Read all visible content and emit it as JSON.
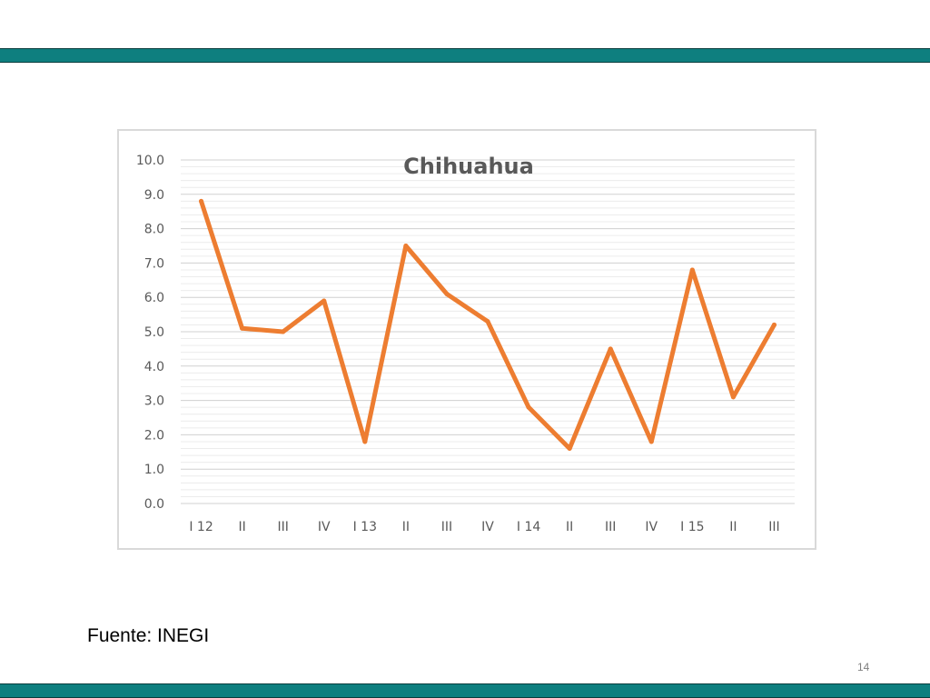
{
  "slide": {
    "source_text": "Fuente: INEGI",
    "page_number": "14",
    "band_color": "#0e7f7f"
  },
  "chart_data": {
    "type": "line",
    "title": "Chihuahua",
    "categories": [
      "I 12",
      "II",
      "III",
      "IV",
      "I 13",
      "II",
      "III",
      "IV",
      "I 14",
      "II",
      "III",
      "IV",
      "I 15",
      "II",
      "III"
    ],
    "series": [
      {
        "values": [
          8.8,
          5.1,
          5.0,
          5.9,
          1.8,
          7.5,
          6.1,
          5.3,
          2.8,
          1.6,
          4.5,
          1.8,
          6.8,
          3.1,
          5.2
        ],
        "color": "#ed7d31"
      }
    ],
    "ylim": [
      0,
      10
    ],
    "yticks": [
      "0.0",
      "1.0",
      "2.0",
      "3.0",
      "4.0",
      "5.0",
      "6.0",
      "7.0",
      "8.0",
      "9.0",
      "10.0"
    ],
    "xlabel": "",
    "ylabel": "",
    "grid": true,
    "legend": "none"
  }
}
